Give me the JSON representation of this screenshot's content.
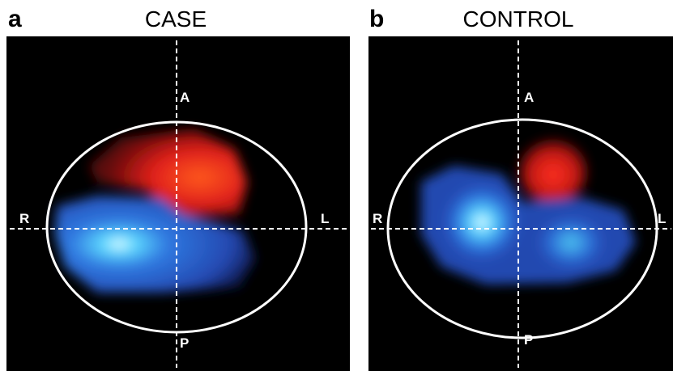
{
  "panels": [
    {
      "letter": "a",
      "title": "CASE",
      "labels": {
        "anterior": "A",
        "posterior": "P",
        "right": "R",
        "left": "L"
      }
    },
    {
      "letter": "b",
      "title": "CONTROL",
      "labels": {
        "anterior": "A",
        "posterior": "P",
        "right": "R",
        "left": "L"
      }
    }
  ]
}
